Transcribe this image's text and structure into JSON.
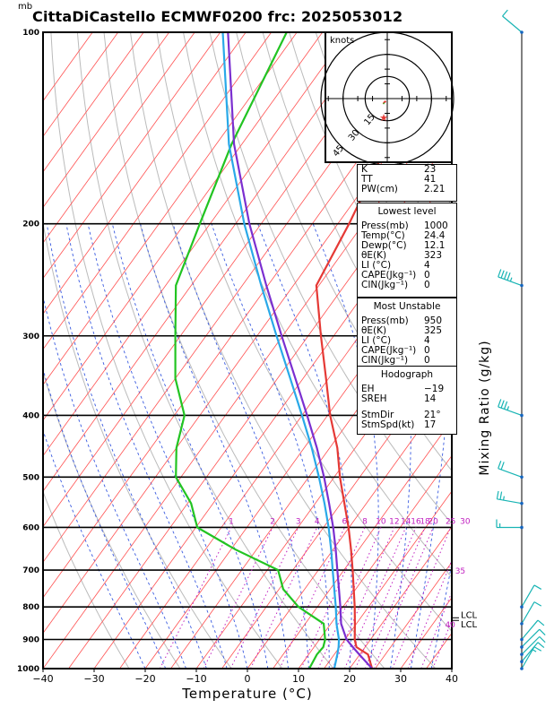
{
  "title": "CittaDiCastello ECMWF0200 frc: 2025053012",
  "pressure_unit": "mb",
  "hodograph": {
    "label": "knots",
    "ring_labels": [
      "15",
      "30",
      "45"
    ]
  },
  "indices": {
    "k": {
      "label": "K",
      "value": "23"
    },
    "tt": {
      "label": "TT",
      "value": "41"
    },
    "pw": {
      "label": "PW(cm)",
      "value": "2.21"
    }
  },
  "lowest_level": {
    "header": "Lowest level",
    "rows": [
      {
        "label": "Press(mb)",
        "value": "1000"
      },
      {
        "label": "Temp(°C)",
        "value": "24.4"
      },
      {
        "label": "Dewp(°C)",
        "value": "12.1"
      },
      {
        "label": "θE(K)",
        "value": "323"
      },
      {
        "label": "LI (°C)",
        "value": "4"
      },
      {
        "label": "CAPE(Jkg⁻¹)",
        "value": "0"
      },
      {
        "label": "CIN(Jkg⁻¹)",
        "value": "0"
      }
    ]
  },
  "most_unstable": {
    "header": "Most Unstable",
    "rows": [
      {
        "label": "Press(mb)",
        "value": "950"
      },
      {
        "label": "θE(K)",
        "value": "325"
      },
      {
        "label": "LI (°C)",
        "value": "4"
      },
      {
        "label": "CAPE(Jkg⁻¹)",
        "value": "0"
      },
      {
        "label": "CIN(Jkg⁻¹)",
        "value": "0"
      }
    ]
  },
  "hodograph_box": {
    "header": "Hodograph",
    "rows": [
      {
        "label": "EH",
        "value": "−19"
      },
      {
        "label": "SREH",
        "value": "14"
      },
      {
        "label": "StmDir",
        "value": "21°"
      },
      {
        "label": "StmSpd(kt)",
        "value": "17"
      }
    ]
  },
  "mixing_ratio_label": "Mixing Ratio (g/kg)",
  "lcl_label": "LCL",
  "colors": {
    "temperature": "#e53935",
    "dewpoint": "#22c422",
    "parcel": "#7b2fd0",
    "wetbulb": "#29a9e8",
    "isotherm": "#ff5050",
    "dry_adiabat": "#bbbbbb",
    "moist_adiabat": "#3a5be0",
    "mixing_ratio": "#c020c0",
    "barb": "#18b4b4"
  },
  "chart_data": {
    "type": "line",
    "xlabel": "Temperature (°C)",
    "ylabel": "",
    "xlim": [
      -40,
      40
    ],
    "ylim": [
      1000,
      100
    ],
    "x_ticks": [
      "−40",
      "−30",
      "−20",
      "−10",
      "0",
      "10",
      "20",
      "30",
      "40"
    ],
    "y_ticks": [
      "100",
      "200",
      "300",
      "400",
      "500",
      "600",
      "700",
      "800",
      "900",
      "1000"
    ],
    "pressure_levels": [
      1000,
      950,
      925,
      900,
      850,
      800,
      750,
      700,
      650,
      600,
      550,
      500,
      450,
      400,
      350,
      300,
      250,
      200,
      150,
      100
    ],
    "series": [
      {
        "key": "temperature",
        "values": [
          24.4,
          21.6,
          18.3,
          16.9,
          14.7,
          12.3,
          9.6,
          6.7,
          3.5,
          -0.1,
          -4.3,
          -8.9,
          -13.5,
          -19.5,
          -25.5,
          -32.5,
          -40.5,
          -42.8,
          -46.5,
          -50.5
        ]
      },
      {
        "key": "dewpoint",
        "values": [
          12.1,
          11.6,
          11.8,
          11.1,
          8.6,
          1.3,
          -4.2,
          -7.9,
          -19.1,
          -29.7,
          -34.3,
          -41.0,
          -45.0,
          -48.0,
          -55.0,
          -61.0,
          -68.0,
          -72.0,
          -77.0,
          -82.0
        ]
      },
      {
        "key": "parcel",
        "values": [
          24.4,
          19.9,
          17.6,
          15.3,
          12.0,
          9.5,
          6.7,
          3.7,
          0.5,
          -3.1,
          -7.3,
          -12.0,
          -17.5,
          -24.0,
          -31.5,
          -40.2,
          -50.3,
          -62.3,
          -76.5,
          -93.5
        ]
      },
      {
        "key": "wetbulb",
        "values": [
          17.0,
          15.6,
          14.8,
          13.8,
          11.1,
          8.6,
          5.8,
          2.8,
          -0.4,
          -4.0,
          -8.2,
          -13.0,
          -18.5,
          -25.0,
          -32.5,
          -41.2,
          -51.3,
          -63.3,
          -77.5,
          -94.5
        ]
      }
    ],
    "mixing_ratio_values": [
      "1",
      "2",
      "3",
      "4",
      "6",
      "8",
      "10",
      "12",
      "14",
      "16",
      "18",
      "20",
      "25",
      "30",
      "35",
      "40"
    ],
    "wind_profile": [
      {
        "p": 1000,
        "dir": 30,
        "spd": 5
      },
      {
        "p": 975,
        "dir": 40,
        "spd": 10
      },
      {
        "p": 950,
        "dir": 45,
        "spd": 10
      },
      {
        "p": 925,
        "dir": 45,
        "spd": 10
      },
      {
        "p": 900,
        "dir": 40,
        "spd": 10
      },
      {
        "p": 850,
        "dir": 30,
        "spd": 10
      },
      {
        "p": 800,
        "dir": 30,
        "spd": 10
      },
      {
        "p": 600,
        "dir": 270,
        "spd": 5
      },
      {
        "p": 550,
        "dir": 280,
        "spd": 15
      },
      {
        "p": 500,
        "dir": 290,
        "spd": 20
      },
      {
        "p": 400,
        "dir": 290,
        "spd": 25
      },
      {
        "p": 250,
        "dir": 290,
        "spd": 35
      },
      {
        "p": 100,
        "dir": 310,
        "spd": 10
      }
    ]
  }
}
